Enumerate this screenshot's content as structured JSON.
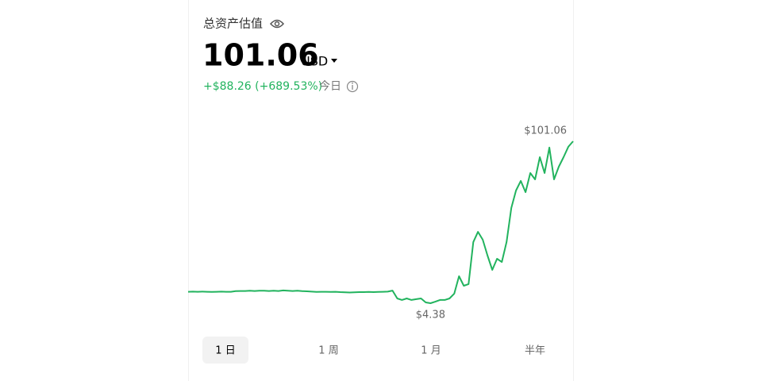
{
  "header": {
    "title": "总资产估值",
    "balance": "101.06",
    "currency": "USD",
    "change": "+$88.26 (+689.53%)",
    "period": "今日"
  },
  "chart_data": {
    "type": "line",
    "color": "#22b35e",
    "values": [
      11.2,
      11.3,
      11.2,
      11.3,
      11.2,
      11.1,
      11.2,
      11.3,
      11.2,
      11.2,
      11.6,
      11.7,
      11.7,
      11.8,
      11.7,
      11.8,
      11.8,
      11.7,
      11.8,
      11.7,
      12.0,
      11.8,
      11.7,
      11.8,
      11.6,
      11.5,
      11.3,
      11.1,
      11.2,
      11.2,
      11.1,
      11.2,
      11.0,
      10.9,
      10.8,
      10.9,
      11.0,
      11.0,
      11.1,
      11.0,
      11.1,
      11.2,
      11.3,
      11.9,
      7.2,
      6.3,
      7.2,
      6.3,
      6.8,
      7.2,
      4.85,
      4.38,
      5.3,
      6.3,
      6.3,
      7.2,
      10.1,
      20.5,
      14.8,
      15.8,
      40.9,
      47.0,
      42.3,
      32.8,
      24.3,
      30.9,
      29.0,
      40.9,
      61.3,
      71.7,
      77.4,
      70.7,
      82.1,
      78.3,
      91.6,
      82.1,
      97.3,
      78.3,
      85.9,
      91.6,
      97.8,
      101.06
    ],
    "max_label": "$101.06",
    "min_label": "$4.38"
  },
  "tabs": {
    "items": [
      "1 日",
      "1 周",
      "1 月",
      "半年"
    ],
    "selected": 0
  }
}
